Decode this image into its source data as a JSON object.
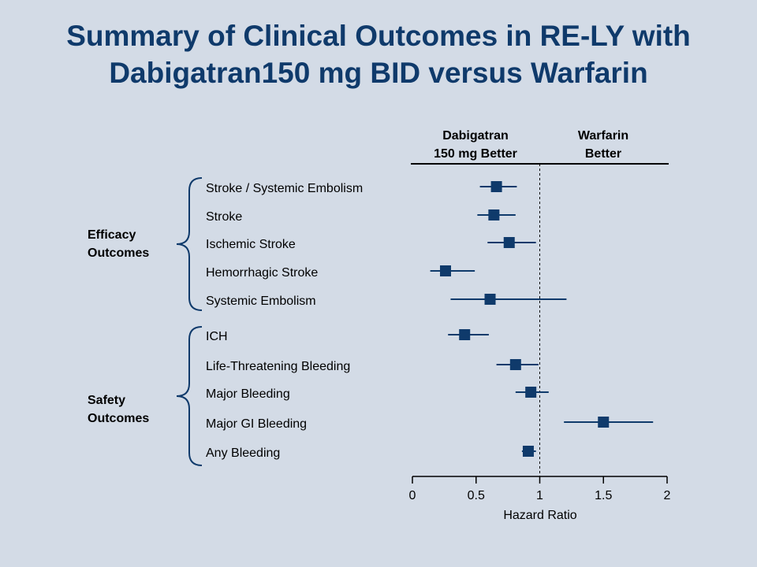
{
  "title": {
    "line1": "Summary of Clinical Outcomes in RE-LY with",
    "line2": "Dabigatran150 mg BID versus Warfarin"
  },
  "colors": {
    "background": "#d3dbe6",
    "title": "#0f3a6b",
    "marker": "#0f3a6b"
  },
  "chart_data": {
    "type": "forest",
    "xlabel": "Hazard Ratio",
    "xlim": [
      0,
      2
    ],
    "xticks": [
      0,
      0.5,
      1,
      1.5,
      2
    ],
    "xtick_labels": [
      "0",
      "0.5",
      "1",
      "1.5",
      "2"
    ],
    "reference_line": 1,
    "header_left": [
      "Dabigatran",
      "150 mg Better"
    ],
    "header_right": [
      "Warfarin",
      "Better"
    ],
    "groups": [
      {
        "label": [
          "Efficacy",
          "Outcomes"
        ],
        "items": [
          {
            "name": "Stroke / Systemic Embolism",
            "hr": 0.66,
            "lo": 0.53,
            "hi": 0.82
          },
          {
            "name": "Stroke",
            "hr": 0.64,
            "lo": 0.51,
            "hi": 0.81
          },
          {
            "name": "Ischemic Stroke",
            "hr": 0.76,
            "lo": 0.59,
            "hi": 0.97
          },
          {
            "name": "Hemorrhagic Stroke",
            "hr": 0.26,
            "lo": 0.14,
            "hi": 0.49
          },
          {
            "name": "Systemic Embolism",
            "hr": 0.61,
            "lo": 0.3,
            "hi": 1.21
          }
        ]
      },
      {
        "label": [
          "Safety",
          "Outcomes"
        ],
        "items": [
          {
            "name": "ICH",
            "hr": 0.41,
            "lo": 0.28,
            "hi": 0.6
          },
          {
            "name": "Life-Threatening Bleeding",
            "hr": 0.81,
            "lo": 0.66,
            "hi": 0.99
          },
          {
            "name": "Major Bleeding",
            "hr": 0.93,
            "lo": 0.81,
            "hi": 1.07
          },
          {
            "name": "Major GI Bleeding",
            "hr": 1.5,
            "lo": 1.19,
            "hi": 1.89
          },
          {
            "name": "Any Bleeding",
            "hr": 0.91,
            "lo": 0.86,
            "hi": 0.97
          }
        ]
      }
    ]
  }
}
